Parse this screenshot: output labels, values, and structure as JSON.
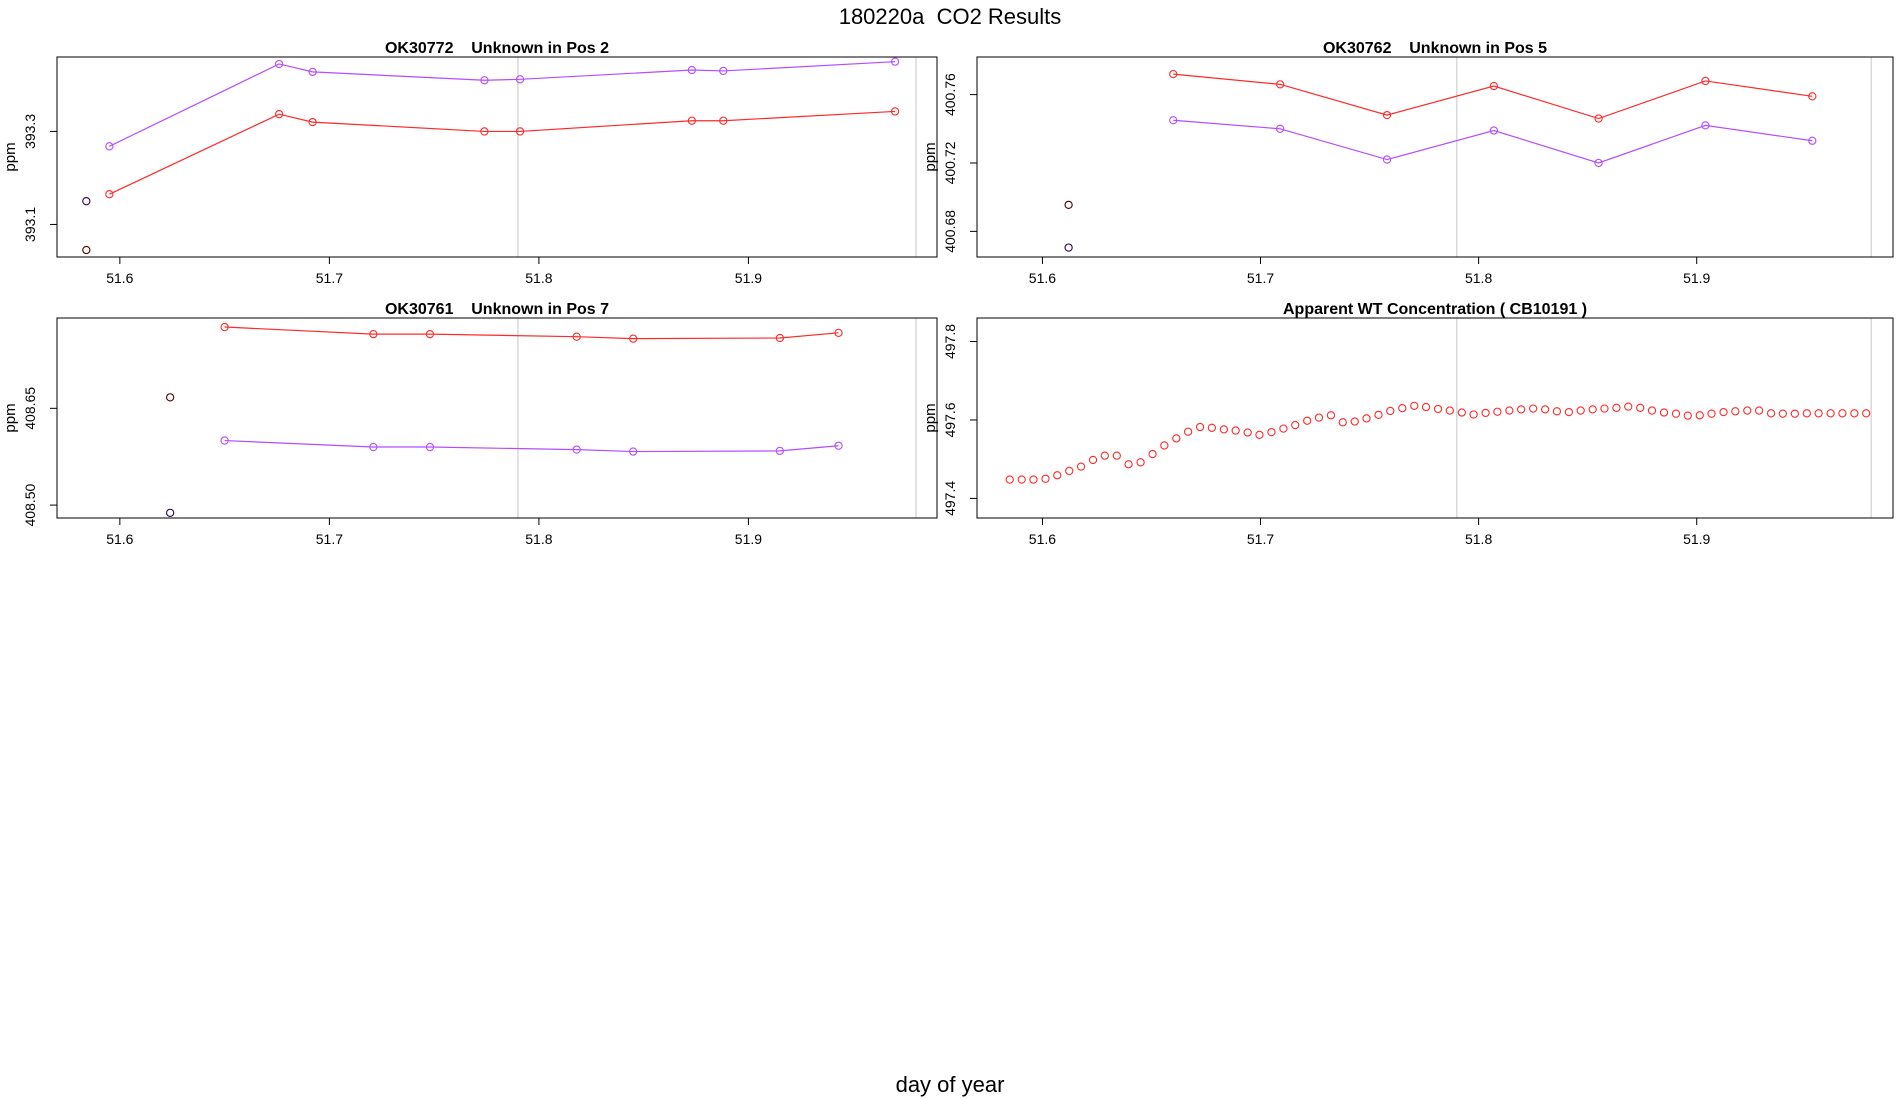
{
  "main_title": "180220a  CO2 Results",
  "x_axis_label": "day of year",
  "colors": {
    "series_red": "#ff2a2a",
    "series_purple": "#b44dff",
    "reference_point": "#4a0000",
    "reference_point_purple": "#2a0050",
    "vline": "#d8d8d8",
    "frame": "#000000"
  },
  "chart_data": [
    {
      "type": "line",
      "title": "OK30772    Unknown in Pos 2",
      "ylabel": "ppm",
      "xlim": [
        51.57,
        51.99
      ],
      "ylim": [
        393.03,
        393.46
      ],
      "x_ticks": [
        "51.6",
        "51.7",
        "51.8",
        "51.9"
      ],
      "x_tick_values": [
        51.6,
        51.7,
        51.8,
        51.9
      ],
      "y_ticks": [
        "393.1",
        "393.3"
      ],
      "y_tick_values": [
        393.1,
        393.3
      ],
      "vlines": [
        51.79,
        51.98
      ],
      "reference_points": [
        {
          "x": 51.584,
          "y": 393.15,
          "color": "#2a0050"
        },
        {
          "x": 51.584,
          "y": 393.045,
          "color": "#4a0000"
        }
      ],
      "series": [
        {
          "name": "red",
          "color": "#ff2a2a",
          "x": [
            51.595,
            51.676,
            51.692,
            51.774,
            51.791,
            51.873,
            51.888,
            51.97
          ],
          "y": [
            393.165,
            393.337,
            393.32,
            393.3,
            393.3,
            393.323,
            393.323,
            393.343
          ]
        },
        {
          "name": "purple",
          "color": "#b44dff",
          "x": [
            51.595,
            51.676,
            51.692,
            51.774,
            51.791,
            51.873,
            51.888,
            51.97
          ],
          "y": [
            393.268,
            393.445,
            393.428,
            393.41,
            393.412,
            393.432,
            393.43,
            393.45
          ]
        }
      ]
    },
    {
      "type": "line",
      "title": "OK30762    Unknown in Pos 5",
      "ylabel": "ppm",
      "xlim": [
        51.57,
        51.99
      ],
      "ylim": [
        400.665,
        400.782
      ],
      "x_ticks": [
        "51.6",
        "51.7",
        "51.8",
        "51.9"
      ],
      "x_tick_values": [
        51.6,
        51.7,
        51.8,
        51.9
      ],
      "y_ticks": [
        "400.68",
        "400.72",
        "400.76"
      ],
      "y_tick_values": [
        400.68,
        400.72,
        400.76
      ],
      "vlines": [
        51.79,
        51.98
      ],
      "reference_points": [
        {
          "x": 51.612,
          "y": 400.6955,
          "color": "#4a0000"
        },
        {
          "x": 51.612,
          "y": 400.6705,
          "color": "#2a0050"
        }
      ],
      "series": [
        {
          "name": "red",
          "color": "#ff2a2a",
          "x": [
            51.66,
            51.709,
            51.758,
            51.807,
            51.855,
            51.904,
            51.953
          ],
          "y": [
            400.772,
            400.766,
            400.748,
            400.765,
            400.746,
            400.768,
            400.759
          ]
        },
        {
          "name": "purple",
          "color": "#b44dff",
          "x": [
            51.66,
            51.709,
            51.758,
            51.807,
            51.855,
            51.904,
            51.953
          ],
          "y": [
            400.745,
            400.74,
            400.722,
            400.739,
            400.72,
            400.742,
            400.733
          ]
        }
      ]
    },
    {
      "type": "line",
      "title": "OK30761    Unknown in Pos 7",
      "ylabel": "ppm",
      "xlim": [
        51.57,
        51.99
      ],
      "ylim": [
        408.48,
        408.79
      ],
      "x_ticks": [
        "51.6",
        "51.7",
        "51.8",
        "51.9"
      ],
      "x_tick_values": [
        51.6,
        51.7,
        51.8,
        51.9
      ],
      "y_ticks": [
        "408.50",
        "408.65"
      ],
      "y_tick_values": [
        408.5,
        408.65
      ],
      "vlines": [
        51.79,
        51.98
      ],
      "reference_points": [
        {
          "x": 51.624,
          "y": 408.667,
          "color": "#4a0000"
        },
        {
          "x": 51.624,
          "y": 408.488,
          "color": "#2a0050"
        }
      ],
      "series": [
        {
          "name": "red",
          "color": "#ff2a2a",
          "x": [
            51.65,
            51.721,
            51.748,
            51.818,
            51.845,
            51.915,
            51.943
          ],
          "y": [
            408.776,
            408.765,
            408.765,
            408.761,
            408.758,
            408.759,
            408.767
          ]
        },
        {
          "name": "purple",
          "color": "#b44dff",
          "x": [
            51.65,
            51.721,
            51.748,
            51.818,
            51.845,
            51.915,
            51.943
          ],
          "y": [
            408.6,
            408.59,
            408.59,
            408.586,
            408.583,
            408.584,
            408.592
          ]
        }
      ]
    },
    {
      "type": "scatter",
      "title": "Apparent WT Concentration ( CB10191 )",
      "ylabel": "ppm",
      "xlim": [
        51.57,
        51.99
      ],
      "ylim": [
        497.35,
        497.86
      ],
      "x_ticks": [
        "51.6",
        "51.7",
        "51.8",
        "51.9"
      ],
      "x_tick_values": [
        51.6,
        51.7,
        51.8,
        51.9
      ],
      "y_ticks": [
        "497.4",
        "497.6",
        "497.8"
      ],
      "y_tick_values": [
        497.4,
        497.6,
        497.8
      ],
      "vlines": [
        51.79,
        51.98
      ],
      "series": [
        {
          "name": "wt",
          "color": "#ff2a2a",
          "x": [
            51.585,
            51.5905,
            51.5959,
            51.6014,
            51.6068,
            51.6123,
            51.6177,
            51.6232,
            51.6286,
            51.6341,
            51.6395,
            51.645,
            51.6505,
            51.6559,
            51.6614,
            51.6668,
            51.6723,
            51.6777,
            51.6832,
            51.6886,
            51.6941,
            51.6995,
            51.705,
            51.7105,
            51.7159,
            51.7214,
            51.7268,
            51.7323,
            51.7377,
            51.7432,
            51.7486,
            51.7541,
            51.7595,
            51.765,
            51.7705,
            51.7759,
            51.7814,
            51.7868,
            51.7923,
            51.7977,
            51.8032,
            51.8086,
            51.8141,
            51.8195,
            51.825,
            51.8305,
            51.8359,
            51.8414,
            51.8468,
            51.8523,
            51.8577,
            51.8632,
            51.8686,
            51.8741,
            51.8795,
            51.885,
            51.8905,
            51.8959,
            51.9014,
            51.9068,
            51.9123,
            51.9177,
            51.9232,
            51.9286,
            51.9341,
            51.9395,
            51.945,
            51.9505,
            51.9559,
            51.9614,
            51.9668,
            51.9723,
            51.9777
          ],
          "y": [
            497.448,
            497.448,
            497.448,
            497.45,
            497.459,
            497.47,
            497.481,
            497.498,
            497.509,
            497.509,
            497.487,
            497.492,
            497.513,
            497.535,
            497.553,
            497.57,
            497.582,
            497.58,
            497.576,
            497.573,
            497.568,
            497.562,
            497.569,
            497.578,
            497.587,
            497.598,
            497.606,
            497.612,
            497.594,
            497.596,
            497.604,
            497.613,
            497.623,
            497.63,
            497.636,
            497.633,
            497.628,
            497.624,
            497.619,
            497.614,
            497.618,
            497.621,
            497.624,
            497.627,
            497.629,
            497.627,
            497.622,
            497.62,
            497.624,
            497.627,
            497.629,
            497.631,
            497.634,
            497.631,
            497.624,
            497.619,
            497.616,
            497.611,
            497.612,
            497.616,
            497.62,
            497.622,
            497.624,
            497.624,
            497.617,
            497.616,
            497.616,
            497.617,
            497.617,
            497.617,
            497.617,
            497.617,
            497.617
          ]
        }
      ]
    }
  ]
}
